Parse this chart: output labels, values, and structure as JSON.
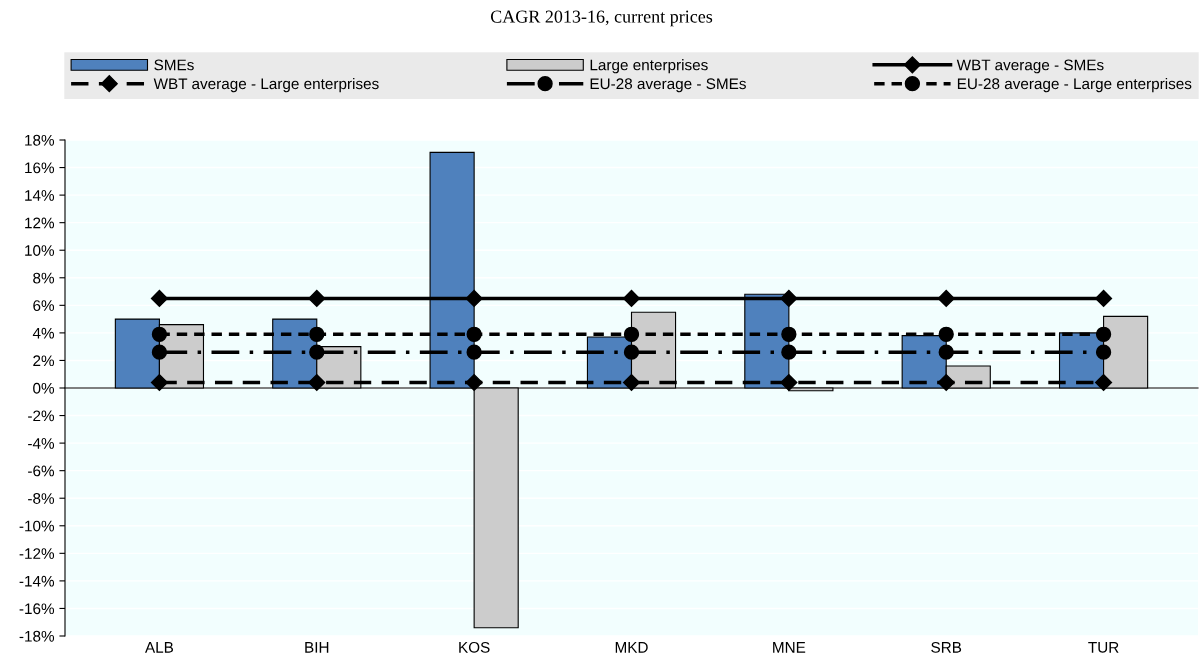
{
  "chart_data": {
    "type": "bar",
    "title": "CAGR 2013-16, current prices",
    "categories": [
      "ALB",
      "BIH",
      "KOS",
      "MKD",
      "MNE",
      "SRB",
      "TUR"
    ],
    "series": [
      {
        "name": "SMEs",
        "color": "#4f81bd",
        "values": [
          5.0,
          5.0,
          17.1,
          3.7,
          6.8,
          3.8,
          4.0
        ]
      },
      {
        "name": "Large enterprises",
        "color": "#cccccc",
        "values": [
          4.6,
          3.0,
          -17.4,
          5.5,
          -0.2,
          1.6,
          5.2
        ]
      },
      {
        "name": "WBT average - SMEs",
        "type": "line",
        "color": "#000000",
        "marker": "diamond",
        "line_style": "solid",
        "values": [
          6.5,
          6.5,
          6.5,
          6.5,
          6.5,
          6.5,
          6.5
        ]
      },
      {
        "name": "WBT average - Large enterprises",
        "type": "line",
        "color": "#000000",
        "marker": "diamond",
        "line_style": "dashed",
        "values": [
          0.4,
          0.4,
          0.4,
          0.4,
          0.4,
          0.4,
          0.4
        ]
      },
      {
        "name": "EU-28 average - SMEs",
        "type": "line",
        "color": "#000000",
        "marker": "circle",
        "line_style": "dashdot",
        "values": [
          2.6,
          2.6,
          2.6,
          2.6,
          2.6,
          2.6,
          2.6
        ]
      },
      {
        "name": "EU-28 average - Large enterprises",
        "type": "line",
        "color": "#000000",
        "marker": "circle",
        "line_style": "dotted",
        "values": [
          3.9,
          3.9,
          3.9,
          3.9,
          3.9,
          3.9,
          3.9
        ]
      }
    ],
    "ylim": [
      -18,
      18
    ],
    "yticks": [
      {
        "value": -18,
        "label": "-18%"
      },
      {
        "value": -16,
        "label": "-16%"
      },
      {
        "value": -14,
        "label": "-14%"
      },
      {
        "value": -12,
        "label": "-12%"
      },
      {
        "value": -10,
        "label": "-10%"
      },
      {
        "value": -8,
        "label": "-8%"
      },
      {
        "value": -6,
        "label": "-6%"
      },
      {
        "value": -4,
        "label": "-4%"
      },
      {
        "value": -2,
        "label": "-2%"
      },
      {
        "value": 0,
        "label": "0%"
      },
      {
        "value": 2,
        "label": "2%"
      },
      {
        "value": 4,
        "label": "4%"
      },
      {
        "value": 6,
        "label": "6%"
      },
      {
        "value": 8,
        "label": "8%"
      },
      {
        "value": 10,
        "label": "10%"
      },
      {
        "value": 12,
        "label": "12%"
      },
      {
        "value": 14,
        "label": "14%"
      },
      {
        "value": 16,
        "label": "16%"
      },
      {
        "value": 18,
        "label": "18%"
      }
    ],
    "grid": "y",
    "legend": "top"
  }
}
